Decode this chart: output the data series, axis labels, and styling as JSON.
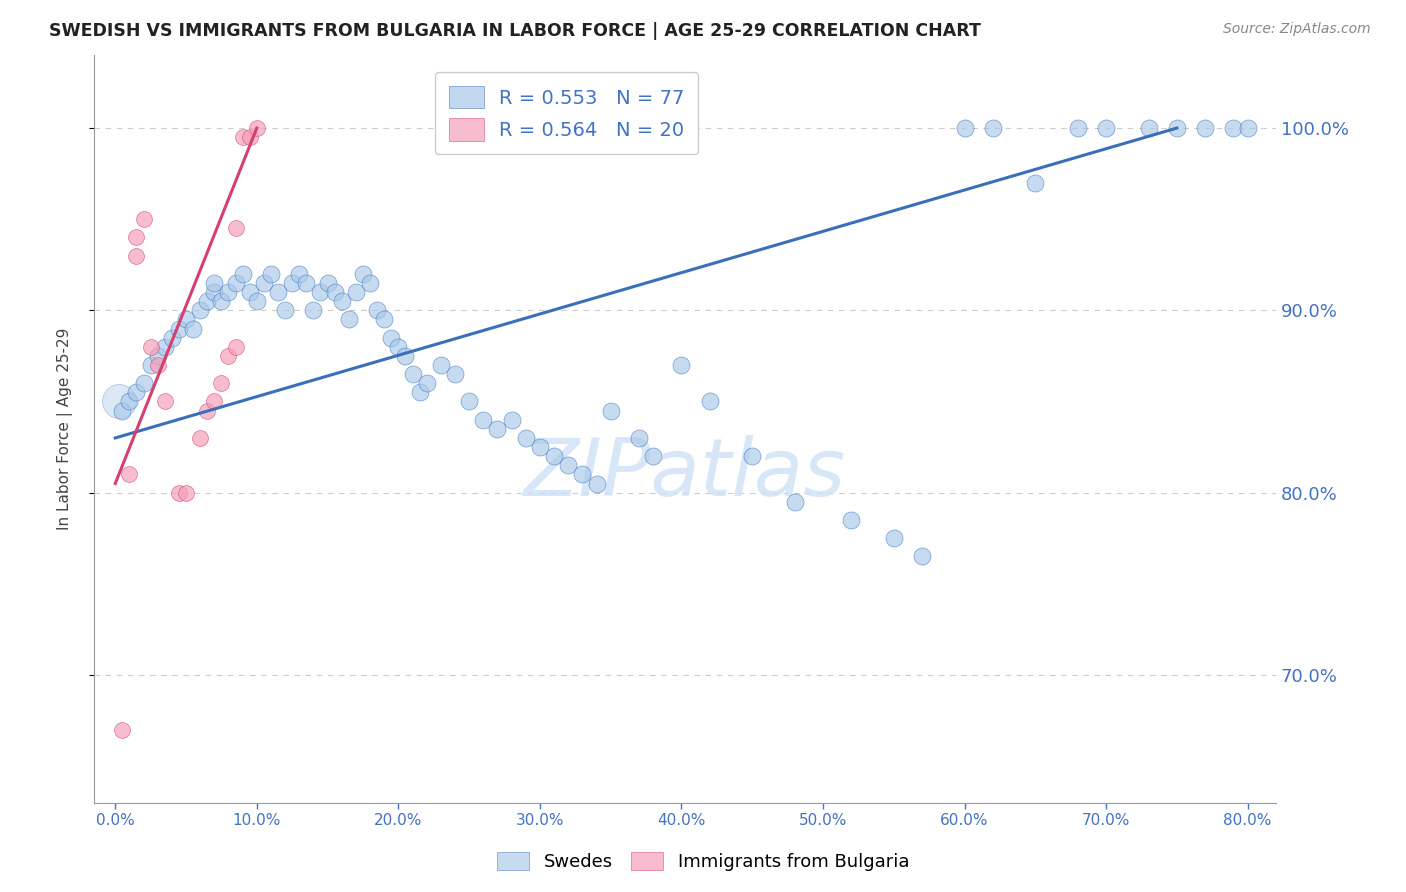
{
  "title": "SWEDISH VS IMMIGRANTS FROM BULGARIA IN LABOR FORCE | AGE 25-29 CORRELATION CHART",
  "source": "Source: ZipAtlas.com",
  "ylabel": "In Labor Force | Age 25-29",
  "x_tick_labels": [
    "0.0%",
    "10.0%",
    "20.0%",
    "30.0%",
    "40.0%",
    "50.0%",
    "60.0%",
    "70.0%",
    "80.0%"
  ],
  "x_tick_values": [
    0,
    10,
    20,
    30,
    40,
    50,
    60,
    70,
    80
  ],
  "y_tick_labels": [
    "70.0%",
    "80.0%",
    "90.0%",
    "100.0%"
  ],
  "y_tick_values": [
    70,
    80,
    90,
    100
  ],
  "xlim": [
    -1.5,
    82
  ],
  "ylim": [
    63,
    104
  ],
  "watermark": "ZIPatlas",
  "blue_color": "#a8c8e8",
  "pink_color": "#f4a0b8",
  "blue_line_color": "#3a6fba",
  "pink_line_color": "#d44070",
  "axis_color": "#4472c4",
  "grid_color": "#cccccc",
  "swedes_label": "Swedes",
  "bulgaria_label": "Immigrants from Bulgaria",
  "blue_R": 0.553,
  "blue_N": 77,
  "pink_R": 0.564,
  "pink_N": 20,
  "blue_points_x": [
    0.5,
    1.0,
    1.5,
    2.0,
    2.5,
    3.0,
    3.5,
    4.0,
    4.5,
    5.0,
    5.5,
    6.0,
    6.5,
    7.0,
    7.0,
    7.5,
    8.0,
    8.5,
    9.0,
    9.5,
    10.0,
    10.5,
    11.0,
    11.5,
    12.0,
    12.5,
    13.0,
    13.5,
    14.0,
    14.5,
    15.0,
    15.5,
    16.0,
    16.5,
    17.0,
    17.5,
    18.0,
    18.5,
    19.0,
    19.5,
    20.0,
    20.5,
    21.0,
    21.5,
    22.0,
    23.0,
    24.0,
    25.0,
    26.0,
    27.0,
    28.0,
    29.0,
    30.0,
    31.0,
    32.0,
    33.0,
    34.0,
    35.0,
    37.0,
    38.0,
    40.0,
    42.0,
    45.0,
    48.0,
    52.0,
    55.0,
    57.0,
    60.0,
    62.0,
    65.0,
    68.0,
    70.0,
    73.0,
    75.0,
    77.0,
    79.0,
    80.0
  ],
  "blue_points_y": [
    84.5,
    85.0,
    85.5,
    86.0,
    87.0,
    87.5,
    88.0,
    88.5,
    89.0,
    89.5,
    89.0,
    90.0,
    90.5,
    91.0,
    91.5,
    90.5,
    91.0,
    91.5,
    92.0,
    91.0,
    90.5,
    91.5,
    92.0,
    91.0,
    90.0,
    91.5,
    92.0,
    91.5,
    90.0,
    91.0,
    91.5,
    91.0,
    90.5,
    89.5,
    91.0,
    92.0,
    91.5,
    90.0,
    89.5,
    88.5,
    88.0,
    87.5,
    86.5,
    85.5,
    86.0,
    87.0,
    86.5,
    85.0,
    84.0,
    83.5,
    84.0,
    83.0,
    82.5,
    82.0,
    81.5,
    81.0,
    80.5,
    84.5,
    83.0,
    82.0,
    87.0,
    85.0,
    82.0,
    79.5,
    78.5,
    77.5,
    76.5,
    100.0,
    100.0,
    97.0,
    100.0,
    100.0,
    100.0,
    100.0,
    100.0,
    100.0,
    100.0
  ],
  "pink_points_x": [
    0.5,
    1.0,
    1.5,
    2.0,
    2.5,
    3.0,
    3.5,
    4.5,
    5.0,
    6.0,
    6.5,
    7.0,
    7.5,
    8.0,
    8.5,
    8.5,
    9.0,
    9.5,
    10.0,
    1.5
  ],
  "pink_points_y": [
    67.0,
    81.0,
    94.0,
    95.0,
    88.0,
    87.0,
    85.0,
    80.0,
    80.0,
    83.0,
    84.5,
    85.0,
    86.0,
    87.5,
    88.0,
    94.5,
    99.5,
    99.5,
    100.0,
    93.0
  ]
}
